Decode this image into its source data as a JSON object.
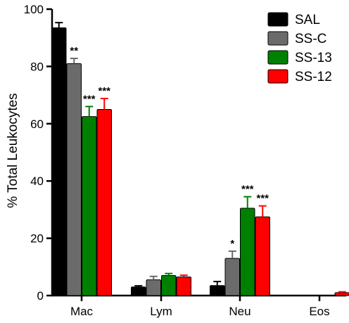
{
  "chart_data": {
    "type": "bar",
    "title": "",
    "xlabel": "",
    "ylabel": "% Total Leukocytes",
    "ylim": [
      0,
      100
    ],
    "yticks": [
      0,
      20,
      40,
      60,
      80,
      100
    ],
    "grid": false,
    "legend_position": "top-right",
    "categories": [
      "Mac",
      "Lym",
      "Neu",
      "Eos"
    ],
    "series": [
      {
        "name": "SAL",
        "color": "#000000",
        "values": [
          93.5,
          3.0,
          3.5,
          0.0
        ],
        "errors": [
          1.8,
          0.4,
          1.4,
          0.0
        ],
        "significance": [
          "",
          "",
          "",
          ""
        ]
      },
      {
        "name": "SS-C",
        "color": "#6b6b6b",
        "values": [
          81.0,
          5.5,
          13.0,
          0.0
        ],
        "errors": [
          1.8,
          1.2,
          2.5,
          0.0
        ],
        "significance": [
          "**",
          "",
          "*",
          ""
        ]
      },
      {
        "name": "SS-13",
        "color": "#008000",
        "values": [
          62.5,
          7.0,
          30.5,
          0.0
        ],
        "errors": [
          3.5,
          0.7,
          4.0,
          0.0
        ],
        "significance": [
          "***",
          "",
          "***",
          ""
        ]
      },
      {
        "name": "SS-12",
        "color": "#ff0000",
        "values": [
          65.0,
          6.5,
          27.5,
          1.0
        ],
        "errors": [
          3.8,
          0.6,
          3.8,
          0.3
        ],
        "significance": [
          "***",
          "",
          "***",
          ""
        ]
      }
    ]
  }
}
